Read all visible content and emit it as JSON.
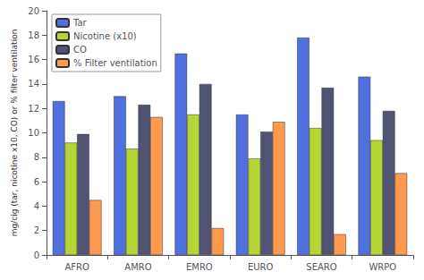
{
  "chart_data": {
    "type": "bar",
    "ylabel": "mg/cig (tar, nicotine x10, CO) or % filter ventilation",
    "categories": [
      "AFRO",
      "AMRO",
      "EMRO",
      "EURO",
      "SEARO",
      "WRPO"
    ],
    "series": [
      {
        "name": "Tar",
        "values": [
          12.6,
          13.0,
          16.5,
          11.5,
          17.8,
          14.6
        ]
      },
      {
        "name": "Nicotine (x10)",
        "values": [
          9.2,
          8.7,
          11.5,
          7.9,
          10.4,
          9.4
        ]
      },
      {
        "name": "CO",
        "values": [
          9.9,
          12.3,
          14.0,
          10.1,
          13.7,
          11.8
        ]
      },
      {
        "name": "% Filter ventilation",
        "values": [
          4.5,
          11.3,
          2.2,
          10.9,
          1.7,
          6.7
        ]
      }
    ],
    "ylim": [
      0,
      20
    ],
    "yticks": [
      0,
      2,
      4,
      6,
      8,
      10,
      12,
      14,
      16,
      18,
      20
    ],
    "grid": false,
    "legend": "upper left"
  }
}
